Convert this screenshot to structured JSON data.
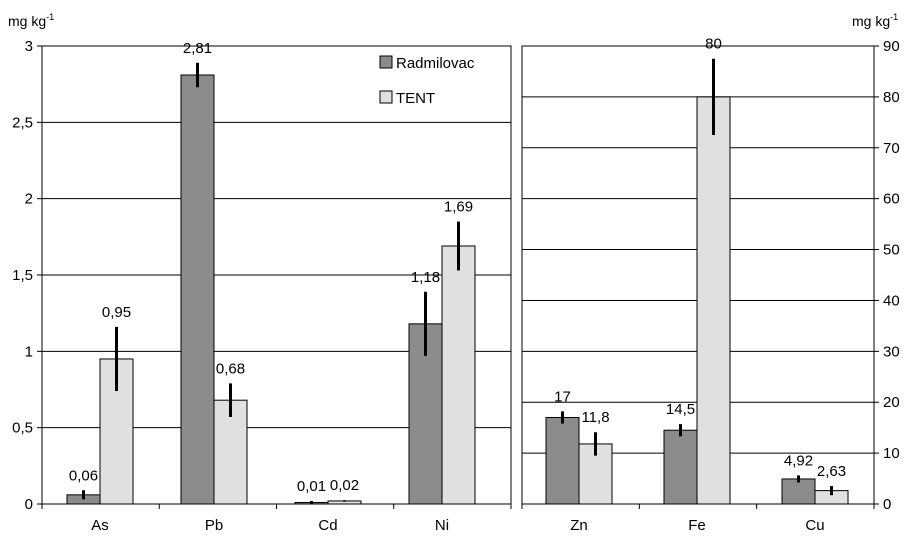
{
  "chart_data": [
    {
      "type": "bar",
      "ylabel": "mg kg-1",
      "ylabel_base": "mg kg",
      "ylabel_sup": "-1",
      "ylim": [
        0,
        3
      ],
      "yticks": [
        "0",
        "0,5",
        "1",
        "1,5",
        "2",
        "2,5",
        "3"
      ],
      "ytick_values": [
        0,
        0.5,
        1,
        1.5,
        2,
        2.5,
        3
      ],
      "grid": true,
      "categories": [
        "As",
        "Pb",
        "Cd",
        "Ni"
      ],
      "series": [
        {
          "name": "Radmilovac",
          "color": "#8c8c8c",
          "values": [
            0.06,
            2.81,
            0.01,
            1.18
          ],
          "labels": [
            "0,06",
            "2,81",
            "0,01",
            "1,18"
          ],
          "errors": [
            0.03,
            0.08,
            0.01,
            0.21
          ]
        },
        {
          "name": "TENT",
          "color": "#e0e0e0",
          "values": [
            0.95,
            0.68,
            0.02,
            1.69
          ],
          "labels": [
            "0,95",
            "0,68",
            "0,02",
            "1,69"
          ],
          "errors": [
            0.21,
            0.11,
            0.005,
            0.16
          ]
        }
      ],
      "legend_position": "top-right"
    },
    {
      "type": "bar",
      "ylabel": "mg kg-1",
      "ylabel_base": "mg kg",
      "ylabel_sup": "-1",
      "ylim": [
        0,
        90
      ],
      "yticks": [
        "0",
        "10",
        "20",
        "30",
        "40",
        "50",
        "60",
        "70",
        "80",
        "90"
      ],
      "ytick_values": [
        0,
        10,
        20,
        30,
        40,
        50,
        60,
        70,
        80,
        90
      ],
      "grid": true,
      "categories": [
        "Zn",
        "Fe",
        "Cu"
      ],
      "series": [
        {
          "name": "Radmilovac",
          "color": "#8c8c8c",
          "values": [
            17,
            14.5,
            4.92
          ],
          "labels": [
            "17",
            "14,5",
            "4,92"
          ],
          "errors": [
            1.2,
            1.2,
            0.7
          ]
        },
        {
          "name": "TENT",
          "color": "#e0e0e0",
          "values": [
            11.8,
            80,
            2.63
          ],
          "labels": [
            "11,8",
            "80",
            "2,63"
          ],
          "errors": [
            2.3,
            7.5,
            0.9
          ]
        }
      ]
    }
  ]
}
